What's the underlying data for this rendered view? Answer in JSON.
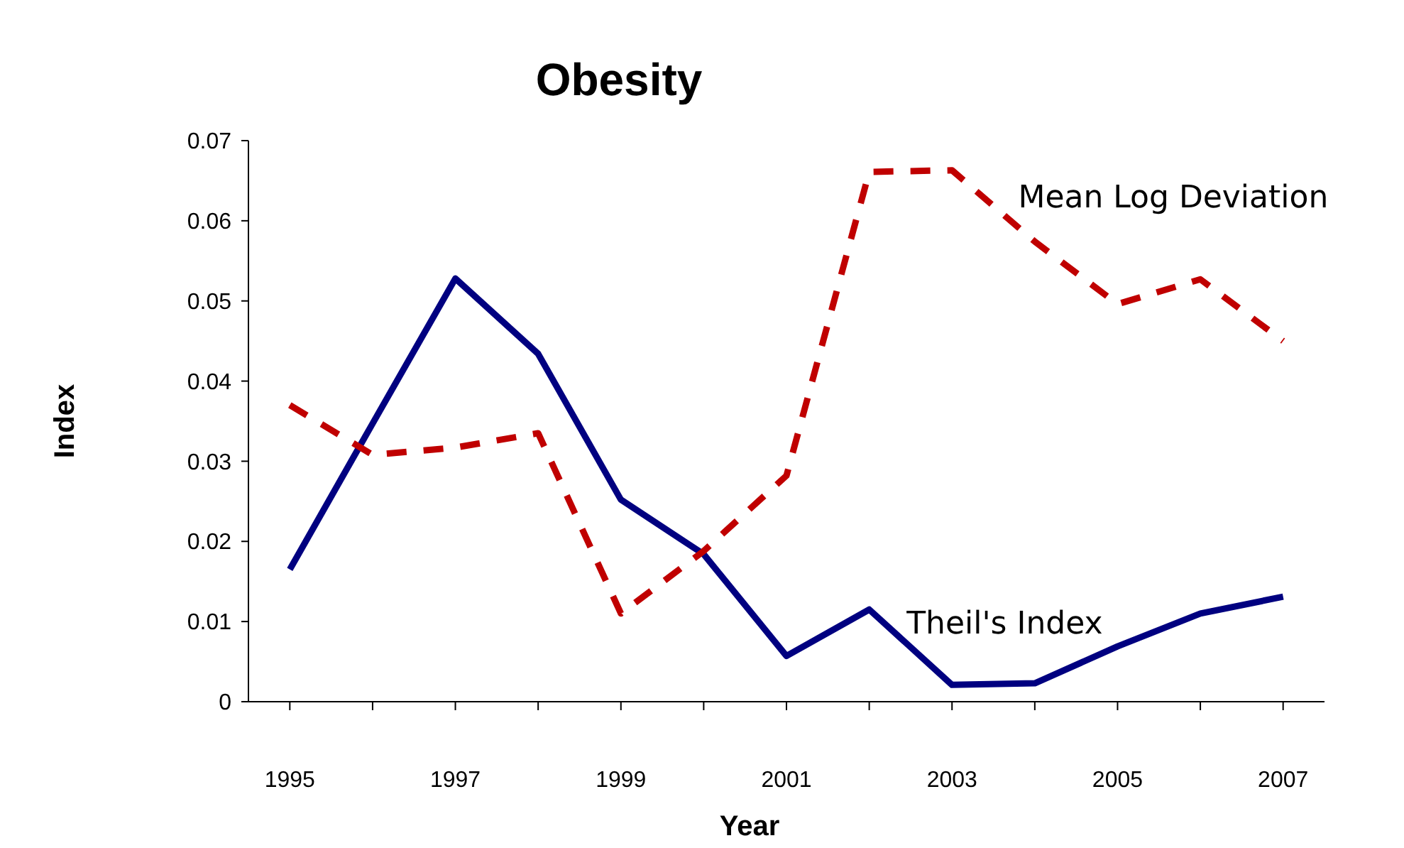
{
  "chart_data": {
    "type": "line",
    "title": "Obesity",
    "xlabel": "Year",
    "ylabel": "Index",
    "x": [
      1995,
      1996,
      1997,
      1998,
      1999,
      2000,
      2001,
      2002,
      2003,
      2004,
      2005,
      2006,
      2007
    ],
    "xlim": [
      1994.5,
      2007.5
    ],
    "xticks": [
      1995,
      {
        "value": 1996,
        "label": null
      },
      1997,
      {
        "value": 1998,
        "label": null
      },
      1999,
      {
        "value": 2000,
        "label": null
      },
      2001,
      {
        "value": 2002,
        "label": null
      },
      2003,
      {
        "value": 2004,
        "label": null
      },
      2005,
      {
        "value": 2006,
        "label": null
      },
      2007
    ],
    "ylim": [
      0,
      0.07
    ],
    "yticks": [
      {
        "value": 0,
        "label": "0"
      },
      {
        "value": 0.01,
        "label": "0.01"
      },
      {
        "value": 0.02,
        "label": "0.02"
      },
      {
        "value": 0.03,
        "label": "0.03"
      },
      {
        "value": 0.04,
        "label": "0.04"
      },
      {
        "value": 0.05,
        "label": "0.05"
      },
      {
        "value": 0.06,
        "label": "0.06"
      },
      {
        "value": 0.07,
        "label": "0.07"
      }
    ],
    "marker": "none",
    "series": [
      {
        "name": "Theil's Index",
        "color": "#000080",
        "line_style": "solid",
        "values": [
          0.0165,
          0.0347,
          0.0528,
          0.0434,
          0.0252,
          0.0184,
          0.0057,
          0.0115,
          0.0021,
          0.0023,
          0.0069,
          0.011,
          0.0131
        ]
      },
      {
        "name": "Mean Log Deviation",
        "color": "#c00000",
        "line_style": "dashed",
        "values": [
          0.037,
          0.0308,
          0.0317,
          0.0335,
          0.011,
          0.0188,
          0.0282,
          0.0661,
          0.0663,
          0.0574,
          0.0496,
          0.0527,
          0.045
        ]
      }
    ]
  }
}
